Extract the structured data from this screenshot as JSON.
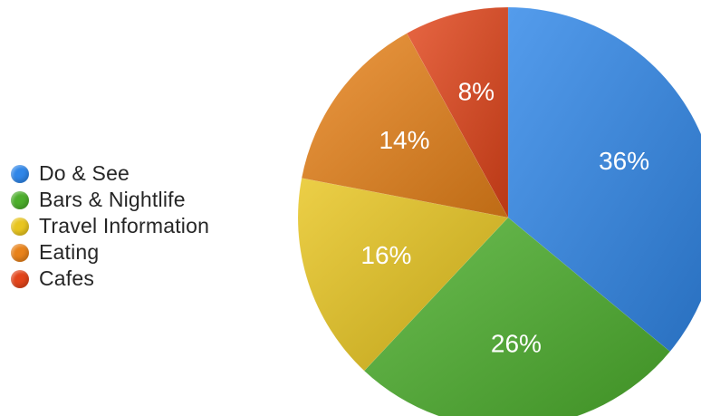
{
  "chart_data": {
    "type": "pie",
    "title": "",
    "legend_position": "left",
    "slices": [
      {
        "label": "Do & See",
        "value": 36,
        "display": "36%",
        "color": "#2f86e8"
      },
      {
        "label": "Bars & Nightlife",
        "value": 26,
        "display": "26%",
        "color": "#4cae2c"
      },
      {
        "label": "Travel Information",
        "value": 16,
        "display": "16%",
        "color": "#e8c51f"
      },
      {
        "label": "Eating",
        "value": 14,
        "display": "14%",
        "color": "#e8821a"
      },
      {
        "label": "Cafes",
        "value": 8,
        "display": "8%",
        "color": "#e2441a"
      }
    ]
  }
}
